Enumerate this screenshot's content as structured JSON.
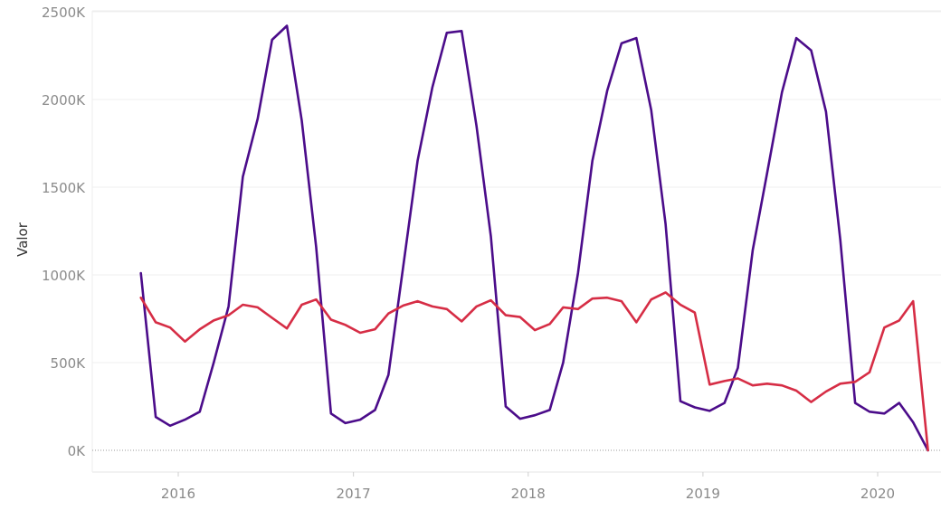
{
  "chart_data": {
    "type": "line",
    "ylabel": "Valor",
    "xlabel": "",
    "ylim": [
      0,
      2500000
    ],
    "y_ticks": [
      {
        "value": 0,
        "label": "0K"
      },
      {
        "value": 500000,
        "label": "500K"
      },
      {
        "value": 1000000,
        "label": "1000K"
      },
      {
        "value": 1500000,
        "label": "1500K"
      },
      {
        "value": 2000000,
        "label": "2000K"
      },
      {
        "value": 2500000,
        "label": "2500K"
      }
    ],
    "x_ticks": [
      {
        "value": "2016-01-01",
        "label": "2016"
      },
      {
        "value": "2017-01-01",
        "label": "2017"
      },
      {
        "value": "2018-01-01",
        "label": "2018"
      },
      {
        "value": "2019-01-01",
        "label": "2019"
      },
      {
        "value": "2020-01-01",
        "label": "2020"
      }
    ],
    "xlim": [
      "2015-07-01",
      "2020-05-01"
    ],
    "grid": true,
    "legend": "none",
    "x": [
      "2015-10",
      "2015-11",
      "2015-12",
      "2016-01",
      "2016-02",
      "2016-03",
      "2016-04",
      "2016-05",
      "2016-06",
      "2016-07",
      "2016-08",
      "2016-09",
      "2016-10",
      "2016-11",
      "2016-12",
      "2017-01",
      "2017-02",
      "2017-03",
      "2017-04",
      "2017-05",
      "2017-06",
      "2017-07",
      "2017-08",
      "2017-09",
      "2017-10",
      "2017-11",
      "2017-12",
      "2018-01",
      "2018-02",
      "2018-03",
      "2018-04",
      "2018-05",
      "2018-06",
      "2018-07",
      "2018-08",
      "2018-09",
      "2018-10",
      "2018-11",
      "2018-12",
      "2019-01",
      "2019-02",
      "2019-03",
      "2019-04",
      "2019-05",
      "2019-06",
      "2019-07",
      "2019-08",
      "2019-09",
      "2019-10",
      "2019-11",
      "2019-12",
      "2020-01",
      "2020-02",
      "2020-03",
      "2020-04"
    ],
    "series": [
      {
        "color": "#4b0c8a",
        "values": [
          1010000,
          190000,
          140000,
          175000,
          220000,
          500000,
          820000,
          1560000,
          1890000,
          2340000,
          2420000,
          1880000,
          1160000,
          210000,
          155000,
          175000,
          230000,
          430000,
          1050000,
          1650000,
          2070000,
          2380000,
          2390000,
          1850000,
          1220000,
          250000,
          180000,
          200000,
          230000,
          500000,
          1010000,
          1650000,
          2050000,
          2320000,
          2350000,
          1940000,
          1290000,
          280000,
          245000,
          225000,
          270000,
          470000,
          1140000,
          1580000,
          2040000,
          2350000,
          2280000,
          1930000,
          1200000,
          270000,
          220000,
          210000,
          270000,
          160000,
          0
        ]
      },
      {
        "color": "#d62d45",
        "values": [
          870000,
          730000,
          700000,
          620000,
          690000,
          740000,
          770000,
          830000,
          815000,
          755000,
          695000,
          830000,
          860000,
          745000,
          715000,
          670000,
          690000,
          780000,
          825000,
          850000,
          820000,
          805000,
          735000,
          820000,
          855000,
          770000,
          760000,
          685000,
          720000,
          815000,
          805000,
          865000,
          870000,
          850000,
          730000,
          860000,
          900000,
          830000,
          785000,
          375000,
          395000,
          410000,
          370000,
          380000,
          370000,
          340000,
          275000,
          335000,
          380000,
          390000,
          445000,
          700000,
          740000,
          850000,
          0
        ]
      }
    ]
  }
}
